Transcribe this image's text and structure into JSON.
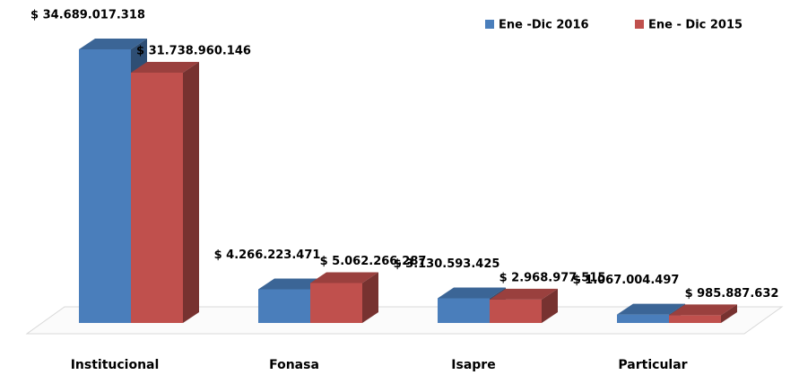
{
  "chart_data": {
    "type": "bar3d",
    "categories": [
      "Institucional",
      "Fonasa",
      "Isapre",
      "Particular"
    ],
    "series": [
      {
        "name": "Ene -Dic 2016",
        "color": "#4a7ebb",
        "values": [
          34689017318,
          4266223471,
          3130593425,
          1067004497
        ],
        "value_labels": [
          "$ 34.689.017.318",
          "$ 4.266.223.471",
          "$ 3.130.593.425",
          "$ 1.067.004.497"
        ]
      },
      {
        "name": "Ene - Dic 2015",
        "color": "#c0504d",
        "values": [
          31738960146,
          5062266287,
          2968977515,
          985887632
        ],
        "value_labels": [
          "$ 31.738.960.146",
          "$ 5.062.266.287",
          "$ 2.968.977.515",
          "$ 985.887.632"
        ]
      }
    ],
    "ylim": [
      0,
      34689017318
    ],
    "legend": "top-right"
  }
}
